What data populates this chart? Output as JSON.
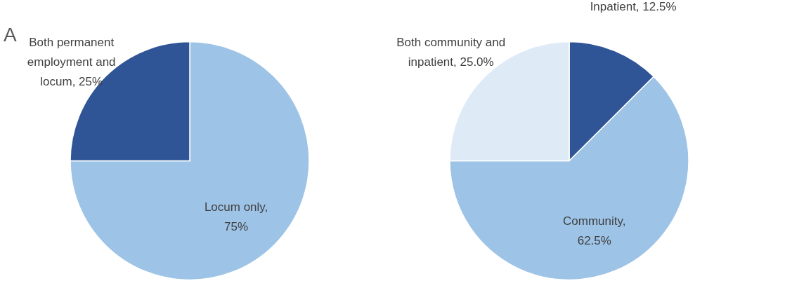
{
  "chart_data": [
    {
      "type": "pie",
      "categories": [
        "Locum only, 75%",
        "Both permanent employment and locum, 25%"
      ],
      "values": [
        75,
        25
      ],
      "colors": [
        "#9dc3e6",
        "#2f5597"
      ],
      "annotations": [
        "A"
      ]
    },
    {
      "type": "pie",
      "categories": [
        "Inpatient, 12.5%",
        "Community, 62.5%",
        "Both community and inpatient, 25.0%"
      ],
      "values": [
        12.5,
        62.5,
        25.0
      ],
      "colors": [
        "#2f5597",
        "#9dc3e6",
        "#deebf7"
      ]
    }
  ]
}
